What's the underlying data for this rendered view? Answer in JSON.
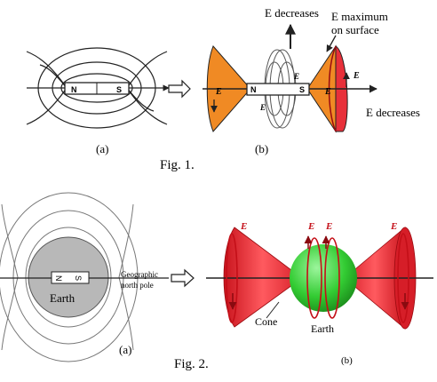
{
  "fig1": {
    "caption": "Fig. 1.",
    "panel_a": {
      "label": "(a)",
      "magnet_n": "N",
      "magnet_s": "S"
    },
    "panel_b": {
      "label": "(b)",
      "magnet_n": "N",
      "magnet_s": "S",
      "e_decreases_top": "E decreases",
      "e_max_line1": "E maximum",
      "e_max_line2": "on surface",
      "e_decreases_right": "E decreases",
      "e_labels": [
        "E",
        "E",
        "E",
        "E",
        "E"
      ]
    }
  },
  "fig2": {
    "caption": "Fig. 2.",
    "panel_a": {
      "label": "(a)",
      "magnet_n": "N",
      "magnet_s": "S",
      "earth": "Earth",
      "pole_line1": "Geographic",
      "pole_line2": "north pole"
    },
    "panel_b": {
      "label": "(b)",
      "cone": "Cone",
      "earth": "Earth",
      "e_labels": [
        "E",
        "E",
        "E",
        "E"
      ]
    }
  },
  "colors": {
    "orange_cone": "#f08a24",
    "red_cone": "#e8303a",
    "dark_red": "#b5121b",
    "earth_green": "#3fcf3f",
    "earth_gray": "#b8b8b8",
    "line": "#222222"
  }
}
